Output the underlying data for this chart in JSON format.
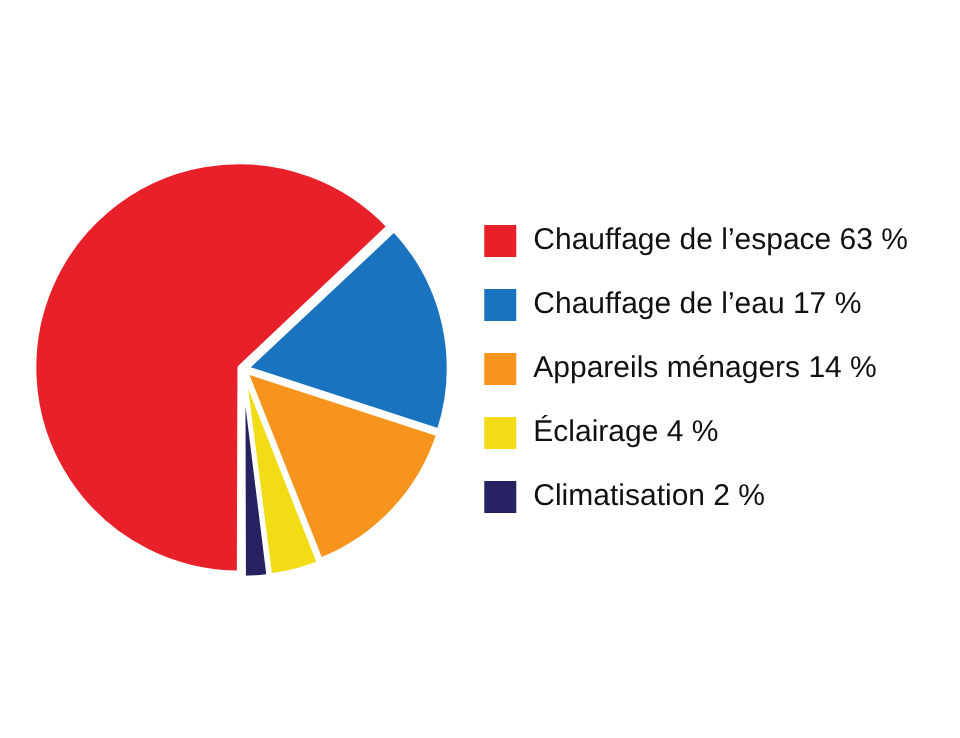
{
  "chart_data": {
    "type": "pie",
    "categories": [
      "Chauffage de l’espace 63 %",
      "Chauffage de l’eau 17 %",
      "Appareils ménagers 14 %",
      "Éclairage 4 %",
      "Climatisation 2 %"
    ],
    "values": [
      63,
      17,
      14,
      4,
      2
    ],
    "colors": [
      "#e8202a",
      "#1a73be",
      "#f7941d",
      "#f2dc15",
      "#262262"
    ],
    "legend": "right"
  }
}
